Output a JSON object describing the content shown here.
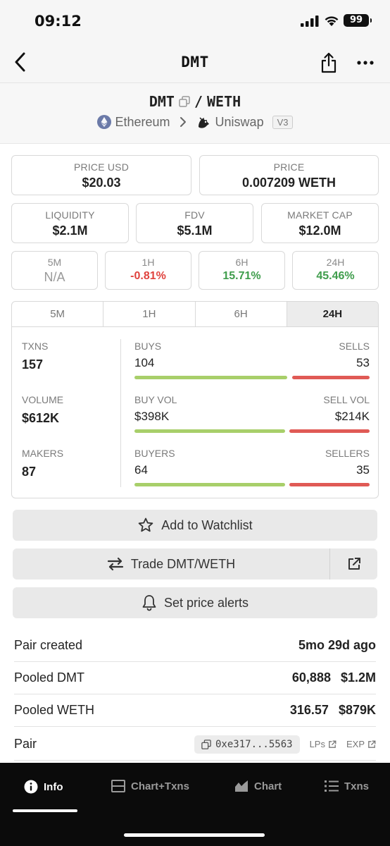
{
  "status_bar": {
    "time": "09:12",
    "battery": "99"
  },
  "nav": {
    "title": "DMT"
  },
  "pair": {
    "base": "DMT",
    "separator": "/",
    "quote": "WETH",
    "chain": "Ethereum",
    "dex": "Uniswap",
    "version": "V3"
  },
  "prices": {
    "price_usd_label": "PRICE USD",
    "price_usd": "$20.03",
    "price_label": "PRICE",
    "price": "0.007209 WETH"
  },
  "metrics": {
    "liquidity_label": "LIQUIDITY",
    "liquidity": "$2.1M",
    "fdv_label": "FDV",
    "fdv": "$5.1M",
    "mcap_label": "MARKET CAP",
    "mcap": "$12.0M"
  },
  "changes": [
    {
      "label": "5M",
      "value": "N/A"
    },
    {
      "label": "1H",
      "value": "-0.81%"
    },
    {
      "label": "6H",
      "value": "15.71%"
    },
    {
      "label": "24H",
      "value": "45.46%"
    }
  ],
  "txn_tabs": [
    "5M",
    "1H",
    "6H",
    "24H"
  ],
  "txn_stats": {
    "txns_label": "TXNS",
    "txns": "157",
    "volume_label": "VOLUME",
    "volume": "$612K",
    "makers_label": "MAKERS",
    "makers": "87",
    "buys_label": "BUYS",
    "buys": "104",
    "sells_label": "SELLS",
    "sells": "53",
    "buy_vol_label": "BUY VOL",
    "buy_vol": "$398K",
    "sell_vol_label": "SELL VOL",
    "sell_vol": "$214K",
    "buyers_label": "BUYERS",
    "buyers": "64",
    "sellers_label": "SELLERS",
    "sellers": "35"
  },
  "actions": {
    "watchlist": "Add to Watchlist",
    "trade": "Trade DMT/WETH",
    "alerts": "Set price alerts"
  },
  "info": {
    "pair_created_label": "Pair created",
    "pair_created": "5mo 29d ago",
    "pooled_base_label": "Pooled DMT",
    "pooled_base_amount": "60,888",
    "pooled_base_usd": "$1.2M",
    "pooled_quote_label": "Pooled WETH",
    "pooled_quote_amount": "316.57",
    "pooled_quote_usd": "$879K",
    "pair_label": "Pair",
    "pair_address": "0xe317...5563",
    "lps_link": "LPs",
    "exp_link": "EXP"
  },
  "bottom_tabs": [
    {
      "label": "Info",
      "icon": "info-icon"
    },
    {
      "label": "Chart+Txns",
      "icon": "split-layout-icon"
    },
    {
      "label": "Chart",
      "icon": "area-chart-icon"
    },
    {
      "label": "Txns",
      "icon": "list-icon"
    }
  ],
  "colors": {
    "negative": "#e0433e",
    "positive": "#3f9d4c",
    "buy_bar": "#a8cf6a",
    "sell_bar": "#e05a55"
  }
}
